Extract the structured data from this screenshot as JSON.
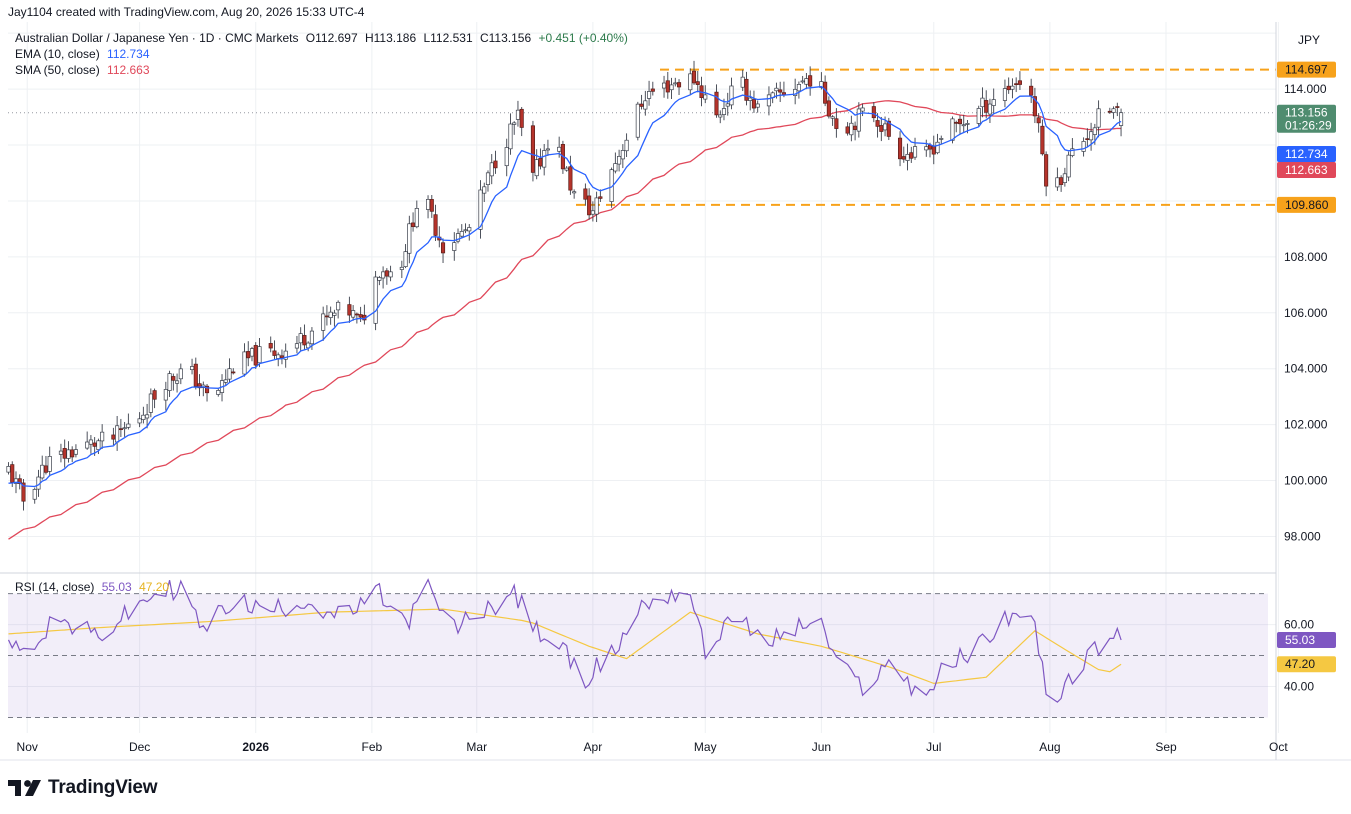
{
  "header": {
    "credit": "Jay1104 created with TradingView.com, Aug 20, 2026 15:33 UTC-4"
  },
  "symbol": {
    "name": "Australian Dollar / Japanese Yen · 1D · CMC Markets",
    "open": "O112.697",
    "high": "H113.186",
    "low": "L112.531",
    "close": "C113.156",
    "change": "+0.451 (+0.40%)"
  },
  "indicators": {
    "ema_label": "EMA (10, close)",
    "ema_value": "112.734",
    "sma_label": "SMA (50, close)",
    "sma_value": "112.663",
    "rsi_label": "RSI (14, close)",
    "rsi_value": "55.03",
    "rsi_ma_value": "47.20"
  },
  "price_axis": {
    "currency": "JPY",
    "last_price": "113.156",
    "countdown": "01:26:29",
    "ema_tag": "112.734",
    "sma_tag": "112.663",
    "resistance_tag": "114.697",
    "support_tag": "109.860"
  },
  "colors": {
    "up": "#2c7a4b",
    "down": "#b5332b",
    "ema": "#2962ff",
    "sma": "#e0485a",
    "rsi": "#7e57c2",
    "rsi_ma": "#f5c842",
    "level": "#f7a21b",
    "last_price_tag": "#4f8c6f"
  },
  "footer": {
    "brand": "TradingView"
  },
  "chart_data": [
    {
      "type": "candlestick",
      "x_axis_labels": [
        "Nov",
        "Dec",
        "2026",
        "Feb",
        "Mar",
        "Apr",
        "May",
        "Jun",
        "Jul",
        "Aug",
        "Sep",
        "Oct"
      ],
      "y_ticks": [
        "98.000",
        "100.000",
        "102.000",
        "104.000",
        "106.000",
        "108.000",
        "114.000"
      ],
      "ylim": [
        96.8,
        116.4
      ],
      "levels": [
        114.697,
        109.86
      ],
      "close_anchors": [
        [
          "2025-10-27",
          100.4
        ],
        [
          "2025-10-31",
          99.3
        ],
        [
          "2025-11-06",
          100.6
        ],
        [
          "2025-11-12",
          101.0
        ],
        [
          "2025-11-18",
          101.3
        ],
        [
          "2025-11-24",
          101.5
        ],
        [
          "2025-12-01",
          102.3
        ],
        [
          "2025-12-08",
          103.6
        ],
        [
          "2025-12-14",
          104.0
        ],
        [
          "2025-12-20",
          102.8
        ],
        [
          "2025-12-26",
          104.1
        ],
        [
          "2026-01-02",
          104.5
        ],
        [
          "2026-01-10",
          104.7
        ],
        [
          "2026-01-18",
          105.6
        ],
        [
          "2026-01-25",
          106.2
        ],
        [
          "2026-01-29",
          105.6
        ],
        [
          "2026-02-03",
          107.6
        ],
        [
          "2026-02-08",
          107.4
        ],
        [
          "2026-02-14",
          110.4
        ],
        [
          "2026-02-20",
          108.4
        ],
        [
          "2026-02-27",
          109.0
        ],
        [
          "2026-03-06",
          111.5
        ],
        [
          "2026-03-12",
          113.0
        ],
        [
          "2026-03-16",
          110.8
        ],
        [
          "2026-03-21",
          112.5
        ],
        [
          "2026-03-27",
          110.2
        ],
        [
          "2026-04-01",
          109.6
        ],
        [
          "2026-04-08",
          111.7
        ],
        [
          "2026-04-15",
          113.8
        ],
        [
          "2026-04-22",
          114.2
        ],
        [
          "2026-04-28",
          114.4
        ],
        [
          "2026-05-04",
          113.0
        ],
        [
          "2026-05-10",
          114.3
        ],
        [
          "2026-05-15",
          113.3
        ],
        [
          "2026-05-22",
          113.9
        ],
        [
          "2026-05-30",
          114.5
        ],
        [
          "2026-06-06",
          112.5
        ],
        [
          "2026-06-14",
          113.3
        ],
        [
          "2026-06-22",
          111.8
        ],
        [
          "2026-06-28",
          111.5
        ],
        [
          "2026-07-04",
          112.5
        ],
        [
          "2026-07-10",
          112.9
        ],
        [
          "2026-07-16",
          113.6
        ],
        [
          "2026-07-22",
          114.2
        ],
        [
          "2026-07-26",
          114.4
        ],
        [
          "2026-07-29",
          112.5
        ],
        [
          "2026-08-01",
          110.0
        ],
        [
          "2026-08-06",
          111.5
        ],
        [
          "2026-08-12",
          112.6
        ],
        [
          "2026-08-16",
          113.3
        ],
        [
          "2026-08-20",
          113.156
        ]
      ],
      "ema_period": 10,
      "sma_period": 50,
      "sma_start": 97.9
    },
    {
      "type": "line",
      "title": "RSI (14, close)",
      "y_ticks": [
        "40.00",
        "60.00"
      ],
      "ylim": [
        25,
        76
      ],
      "bands": [
        30,
        70
      ],
      "midline": 50,
      "series": [
        {
          "name": "RSI",
          "anchors": [
            [
              "2025-10-27",
              58
            ],
            [
              "2025-10-31",
              50
            ],
            [
              "2025-11-08",
              62
            ],
            [
              "2025-11-20",
              56
            ],
            [
              "2025-12-05",
              70
            ],
            [
              "2025-12-12",
              72
            ],
            [
              "2025-12-18",
              58
            ],
            [
              "2025-12-26",
              68
            ],
            [
              "2026-01-04",
              64
            ],
            [
              "2026-01-14",
              68
            ],
            [
              "2026-01-24",
              62
            ],
            [
              "2026-02-03",
              70
            ],
            [
              "2026-02-10",
              60
            ],
            [
              "2026-02-16",
              72
            ],
            [
              "2026-02-22",
              58
            ],
            [
              "2026-03-02",
              64
            ],
            [
              "2026-03-11",
              70
            ],
            [
              "2026-03-17",
              58
            ],
            [
              "2026-03-24",
              52
            ],
            [
              "2026-03-29",
              42
            ],
            [
              "2026-04-06",
              50
            ],
            [
              "2026-04-14",
              66
            ],
            [
              "2026-04-22",
              70
            ],
            [
              "2026-04-27",
              71
            ],
            [
              "2026-05-01",
              50
            ],
            [
              "2026-05-08",
              64
            ],
            [
              "2026-05-16",
              54
            ],
            [
              "2026-05-24",
              58
            ],
            [
              "2026-05-31",
              62
            ],
            [
              "2026-06-06",
              46
            ],
            [
              "2026-06-12",
              40
            ],
            [
              "2026-06-20",
              48
            ],
            [
              "2026-06-28",
              36
            ],
            [
              "2026-07-04",
              46
            ],
            [
              "2026-07-12",
              52
            ],
            [
              "2026-07-20",
              62
            ],
            [
              "2026-07-26",
              65
            ],
            [
              "2026-07-29",
              54
            ],
            [
              "2026-08-01",
              28
            ],
            [
              "2026-08-07",
              44
            ],
            [
              "2026-08-14",
              53
            ],
            [
              "2026-08-17",
              56
            ],
            [
              "2026-08-20",
              55.03
            ]
          ]
        },
        {
          "name": "RSI MA",
          "anchors": [
            [
              "2025-10-27",
              57
            ],
            [
              "2025-11-20",
              59
            ],
            [
              "2025-12-20",
              61
            ],
            [
              "2026-01-20",
              64
            ],
            [
              "2026-02-20",
              65
            ],
            [
              "2026-03-15",
              61
            ],
            [
              "2026-03-31",
              53
            ],
            [
              "2026-04-10",
              49
            ],
            [
              "2026-04-27",
              64
            ],
            [
              "2026-05-15",
              57
            ],
            [
              "2026-06-01",
              53
            ],
            [
              "2026-06-20",
              46
            ],
            [
              "2026-07-01",
              41
            ],
            [
              "2026-07-15",
              43
            ],
            [
              "2026-07-28",
              58
            ],
            [
              "2026-08-05",
              52
            ],
            [
              "2026-08-16",
              44
            ],
            [
              "2026-08-20",
              47.2
            ]
          ]
        }
      ]
    }
  ]
}
